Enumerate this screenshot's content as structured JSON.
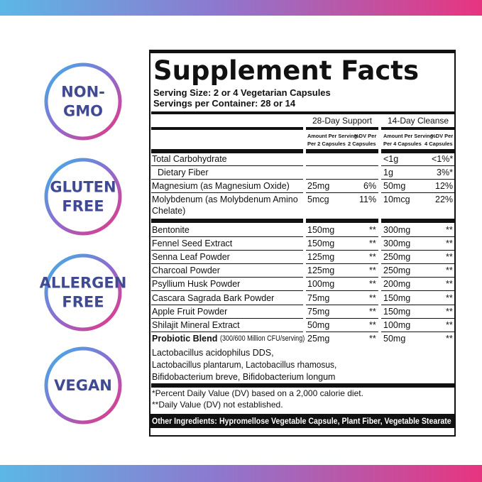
{
  "badges": [
    {
      "lines": [
        "NON-",
        "GMO"
      ]
    },
    {
      "lines": [
        "GLUTEN",
        "FREE"
      ]
    },
    {
      "lines": [
        "ALLERGEN",
        "FREE"
      ]
    },
    {
      "lines": [
        "VEGAN"
      ]
    }
  ],
  "facts": {
    "title": "Supplement Facts",
    "serving_size": "Serving Size: 2 or 4 Vegetarian Capsules",
    "servings_per_container": "Servings per Container: 28 or 14",
    "groups": [
      "28-Day Support",
      "14-Day Cleanse"
    ],
    "subheaders": [
      [
        "Amount Per Serving",
        "Per 2 Capsules"
      ],
      [
        "%DV Per",
        "2 Capsules"
      ],
      [
        "Amount Per Serving",
        "Per 4 Capsules"
      ],
      [
        "%DV Per",
        "4 Capsules"
      ]
    ],
    "vitamins": [
      {
        "name": [
          "Total Carbohydrate"
        ],
        "cells": [
          null,
          null,
          "<1g",
          "<1%*"
        ]
      },
      {
        "name": [
          "Dietary Fiber"
        ],
        "indent": true,
        "cells": [
          null,
          null,
          "1g",
          "3%*"
        ]
      },
      {
        "name": [
          "Magnesium (as Magnesium Oxide)"
        ],
        "cells": [
          "25mg",
          "6%",
          "50mg",
          "12%"
        ]
      },
      {
        "name": [
          "Molybdenum (as Molybdenum Amino",
          "Chelate)"
        ],
        "cells": [
          "5mcg",
          "11%",
          "10mcg",
          "22%"
        ]
      }
    ],
    "blend": [
      {
        "name": [
          "Bentonite"
        ],
        "cells": [
          "150mg",
          "**",
          "300mg",
          "**"
        ]
      },
      {
        "name": [
          "Fennel Seed Extract"
        ],
        "cells": [
          "150mg",
          "**",
          "300mg",
          "**"
        ]
      },
      {
        "name": [
          "Senna Leaf Powder"
        ],
        "cells": [
          "125mg",
          "**",
          "250mg",
          "**"
        ]
      },
      {
        "name": [
          "Charcoal Powder"
        ],
        "cells": [
          "125mg",
          "**",
          "250mg",
          "**"
        ]
      },
      {
        "name": [
          "Psyllium Husk Powder"
        ],
        "cells": [
          "100mg",
          "**",
          "200mg",
          "**"
        ]
      },
      {
        "name": [
          "Cascara Sagrada Bark Powder"
        ],
        "cells": [
          "75mg",
          "**",
          "150mg",
          "**"
        ]
      },
      {
        "name": [
          "Apple Fruit Powder"
        ],
        "cells": [
          "75mg",
          "**",
          "150mg",
          "**"
        ]
      },
      {
        "name": [
          "Shilajit Mineral Extract"
        ],
        "cells": [
          "50mg",
          "**",
          "100mg",
          "**"
        ]
      }
    ],
    "probiotic": {
      "name": "Probiotic Blend",
      "note": "(300/600 Million CFU/serving)",
      "cells": [
        "25mg",
        "**",
        "50mg",
        "**"
      ],
      "strains": [
        "Lactobacillus acidophilus DDS,",
        "Lactobacillus plantarum, Lactobacillus rhamosus,",
        "Bifidobacterium breve, Bifidobacterium longum"
      ]
    },
    "footnotes": [
      "*Percent Daily Value (DV) based on a 2,000 calorie diet.",
      "**Daily Value (DV) not established."
    ],
    "other_label": "Other Ingredients:",
    "other_text": "Hypromellose Vegetable Capsule, Plant Fiber, Vegetable Stearate"
  }
}
